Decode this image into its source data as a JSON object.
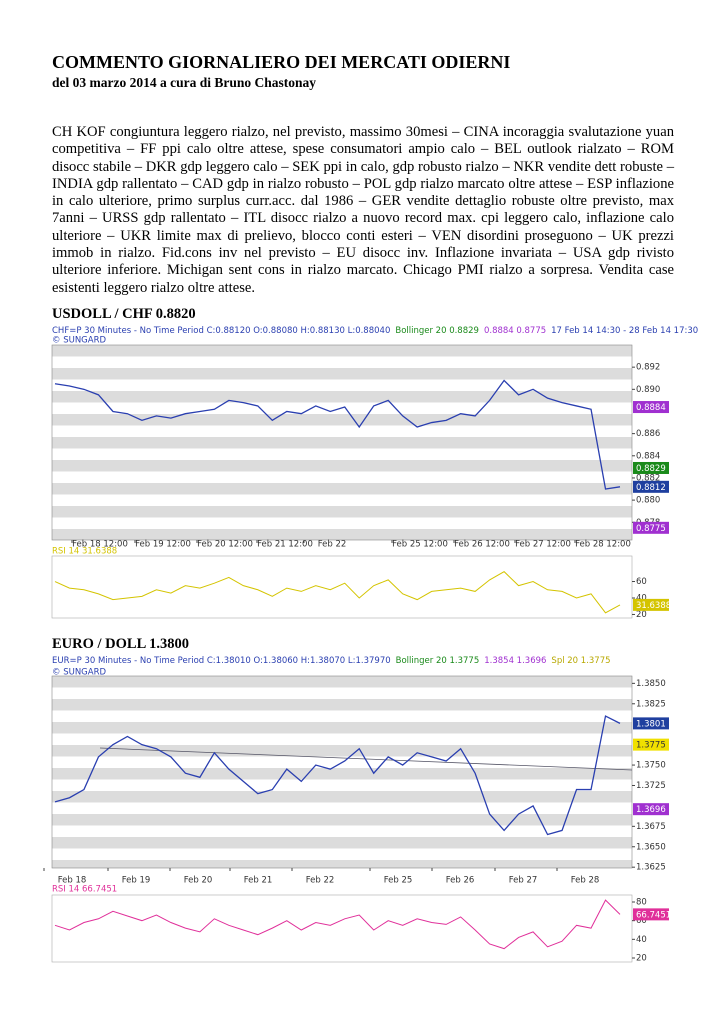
{
  "header": {
    "title": "COMMENTO GIORNALIERO DEI MERCATI ODIERNI",
    "subtitle": "del 03 marzo 2014 a cura di Bruno Chastonay"
  },
  "body": "CH KOF congiuntura leggero rialzo, nel previsto, massimo 30mesi – CINA incoraggia svalutazione yuan competitiva – FF ppi calo oltre attese, spese consumatori ampio calo – BEL outlook rialzato – ROM disocc stabile – DKR gdp leggero calo – SEK ppi in calo, gdp robusto rialzo – NKR vendite dett robuste – INDIA gdp rallentato – CAD gdp in rialzo robusto – POL gdp rialzo marcato oltre attese – ESP inflazione in calo ulteriore, primo surplus curr.acc. dal 1986 – GER vendite dettaglio robuste oltre previsto, max 7anni – URSS gdp rallentato – ITL disocc rialzo a nuovo record max. cpi leggero calo, inflazione calo ulteriore – UKR limite max di prelievo, blocco conti esteri – VEN disordini proseguono – UK prezzi immob in rialzo. Fid.cons inv nel previsto – EU disocc inv. Inflazione invariata – USA gdp rivisto ulteriore inferiore. Michigan sent cons in rialzo marcato. Chicago PMI rialzo a sorpresa. Vendita case esistenti leggero rialzo oltre attese.",
  "charts": [
    {
      "type": "line",
      "heading": "USDOLL / CHF 0.8820",
      "legend_segments": [
        {
          "text": "CHF=P 30 Minutes -  No Time Period  C:0.88120 O:0.88080 H:0.88130 L:0.88040",
          "color": "#2a3fb0"
        },
        {
          "text": "Bollinger 20 0.8829",
          "color": "#1a8a1a"
        },
        {
          "text": "0.8884 0.8775",
          "color": "#a030d0"
        },
        {
          "text": "17 Feb 14 14:30 -  28 Feb 14 17:30",
          "color": "#2a3fb0"
        }
      ],
      "source": "© SUNGARD",
      "categories": [
        "Feb 18 12:00",
        "Feb 19 12:00",
        "Feb 20 12:00",
        "Feb 21 12:00",
        "Feb 22",
        "Feb 25 12:00",
        "Feb 26 12:00",
        "Feb 27 12:00",
        "Feb 28 12:00"
      ],
      "color": "#2a3fb0",
      "values": [
        0.8905,
        0.8903,
        0.89,
        0.8895,
        0.888,
        0.8878,
        0.8872,
        0.8876,
        0.8874,
        0.8878,
        0.888,
        0.8882,
        0.889,
        0.8888,
        0.8885,
        0.8872,
        0.888,
        0.8878,
        0.8885,
        0.888,
        0.8884,
        0.8866,
        0.8885,
        0.889,
        0.8876,
        0.8866,
        0.887,
        0.8872,
        0.8878,
        0.8876,
        0.889,
        0.8908,
        0.8895,
        0.89,
        0.8892,
        0.8888,
        0.8885,
        0.8882,
        0.881,
        0.8812
      ],
      "ylim": [
        0.8764,
        0.894
      ],
      "yticks": [
        0.878,
        {
          "value": 0.88,
          "label": "0.880"
        },
        0.882,
        0.884,
        0.886,
        {
          "value": 0.89,
          "label": "0.890"
        },
        0.892
      ],
      "markers": [
        {
          "value": 0.8884,
          "color": "#a030d0",
          "text_color": "#ffffff"
        },
        {
          "value": 0.8829,
          "color": "#1a8a1a",
          "text_color": "#ffffff"
        },
        {
          "value": 0.8812,
          "color": "#1f3f9f",
          "text_color": "#ffffff"
        },
        {
          "value": 0.8775,
          "color": "#a030d0",
          "text_color": "#ffffff"
        }
      ],
      "rsi": {
        "label": "RSI 14 31.6388",
        "color": "#d4c400",
        "values": [
          60,
          52,
          50,
          45,
          38,
          40,
          42,
          50,
          46,
          55,
          52,
          58,
          65,
          55,
          50,
          42,
          52,
          48,
          55,
          50,
          58,
          40,
          55,
          62,
          45,
          38,
          48,
          50,
          52,
          48,
          62,
          72,
          55,
          60,
          50,
          48,
          40,
          45,
          22,
          31.6388
        ],
        "ylim": [
          15.7,
          91
        ],
        "yticks": [
          20,
          40,
          60
        ],
        "marker": {
          "value": 31.6388,
          "color": "#d4c400",
          "text_color": "#ffffff"
        }
      }
    },
    {
      "type": "line",
      "heading": "EURO / DOLL 1.3800",
      "legend_segments": [
        {
          "text": "EUR=P 30 Minutes -  No Time Period   C:1.38010 O:1.38060 H:1.38070 L:1.37970",
          "color": "#2a3fb0"
        },
        {
          "text": "Bollinger 20 1.3775",
          "color": "#1a8a1a"
        },
        {
          "text": "1.3854 1.3696",
          "color": "#a030d0"
        },
        {
          "text": "Spl 20 1.3775",
          "color": "#b8a800"
        }
      ],
      "source": "© SUNGARD",
      "categories": [
        "Feb 18",
        "Feb 19",
        "Feb 20",
        "Feb 21",
        "Feb 22",
        "Feb 25",
        "Feb 26",
        "Feb 27",
        "Feb 28"
      ],
      "color": "#2a3fb0",
      "values": [
        1.3705,
        1.371,
        1.372,
        1.376,
        1.3775,
        1.3785,
        1.3775,
        1.377,
        1.376,
        1.374,
        1.3735,
        1.3765,
        1.3745,
        1.373,
        1.3715,
        1.372,
        1.3745,
        1.373,
        1.375,
        1.3745,
        1.3755,
        1.377,
        1.374,
        1.376,
        1.375,
        1.3765,
        1.376,
        1.3755,
        1.377,
        1.374,
        1.369,
        1.367,
        1.369,
        1.37,
        1.3665,
        1.367,
        1.372,
        1.372,
        1.381,
        1.3801
      ],
      "ylim": [
        1.3624,
        1.3859
      ],
      "yticks": [
        {
          "value": 1.3625,
          "label": "1.3625"
        },
        {
          "value": 1.365,
          "label": "1.3650"
        },
        1.3675,
        {
          "value": 1.3725,
          "label": "1.3725"
        },
        {
          "value": 1.375,
          "label": "1.3750"
        },
        1.3825,
        {
          "value": 1.385,
          "label": "1.3850"
        }
      ],
      "markers": [
        {
          "value": 1.3801,
          "color": "#1f3f9f",
          "text_color": "#ffffff"
        },
        {
          "value": 1.3775,
          "color": "#f0e000",
          "text_color": "#333333"
        },
        {
          "value": 1.3696,
          "color": "#a030d0",
          "text_color": "#ffffff"
        }
      ],
      "rsi": {
        "label": "RSI 14 66.7451",
        "color": "#e0309a",
        "values": [
          55,
          50,
          58,
          62,
          70,
          65,
          60,
          66,
          58,
          52,
          48,
          62,
          55,
          50,
          45,
          52,
          60,
          50,
          58,
          55,
          62,
          66,
          50,
          60,
          55,
          62,
          58,
          56,
          64,
          50,
          35,
          30,
          42,
          48,
          32,
          38,
          55,
          52,
          82,
          66.7451
        ],
        "ylim": [
          15.7,
          87.5
        ],
        "yticks": [
          20,
          40,
          60,
          80
        ],
        "marker": {
          "value": 66.7451,
          "color": "#e0309a",
          "text_color": "#ffffff"
        }
      }
    }
  ]
}
